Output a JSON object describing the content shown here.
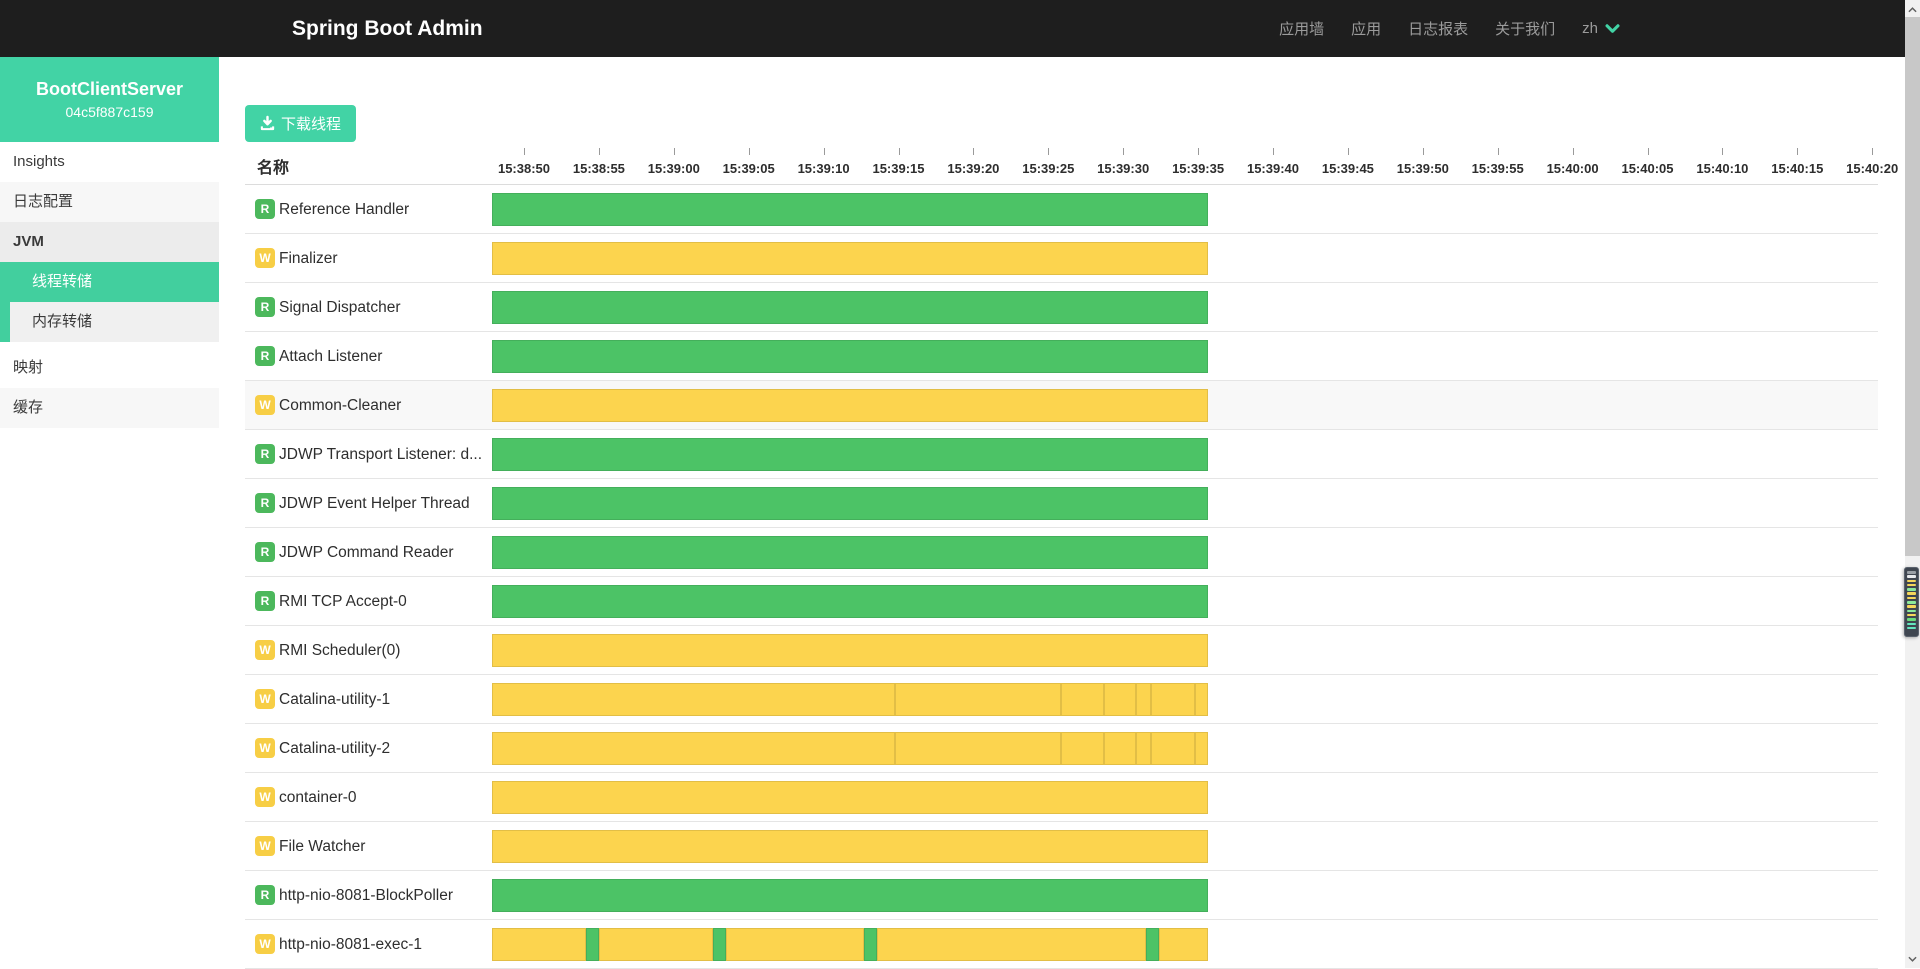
{
  "navbar": {
    "title": "Spring Boot Admin",
    "links": [
      {
        "id": "wallboard",
        "label": "应用墙"
      },
      {
        "id": "applications",
        "label": "应用"
      },
      {
        "id": "journal",
        "label": "日志报表"
      },
      {
        "id": "about",
        "label": "关于我们"
      }
    ],
    "lang": "zh"
  },
  "sidebar": {
    "instance_name": "BootClientServer",
    "instance_id": "04c5f887c159",
    "items": [
      {
        "id": "insights",
        "label": "Insights",
        "variant": "plain"
      },
      {
        "id": "log-config",
        "label": "日志配置",
        "variant": "alt"
      },
      {
        "id": "jvm",
        "label": "JVM",
        "variant": "parent-active"
      }
    ],
    "submenu": [
      {
        "id": "thread-dump",
        "label": "线程转储",
        "variant": "sub selected"
      },
      {
        "id": "memory-dump",
        "label": "内存转储",
        "variant": "sub"
      }
    ],
    "items_after": [
      {
        "id": "mappings",
        "label": "映射",
        "variant": "plain"
      },
      {
        "id": "caches",
        "label": "缓存",
        "variant": "alt"
      }
    ]
  },
  "toolbar": {
    "download_label": "下载线程"
  },
  "table": {
    "name_header": "名称",
    "tick_start_center": 279,
    "tick_step": 74.9,
    "ticks": [
      "15:38:50",
      "15:38:55",
      "15:39:00",
      "15:39:05",
      "15:39:10",
      "15:39:15",
      "15:39:20",
      "15:39:25",
      "15:39:30",
      "15:39:35",
      "15:39:40",
      "15:39:45",
      "15:39:50",
      "15:39:55",
      "15:40:00",
      "15:40:05",
      "15:40:10",
      "15:40:15",
      "15:40:20"
    ]
  },
  "threads": [
    {
      "name": "Reference Handler",
      "state": "R",
      "segments": [
        {
          "c": "g",
          "f": 0,
          "t": 1
        }
      ]
    },
    {
      "name": "Finalizer",
      "state": "W",
      "segments": [
        {
          "c": "y",
          "f": 0,
          "t": 1
        }
      ]
    },
    {
      "name": "Signal Dispatcher",
      "state": "R",
      "segments": [
        {
          "c": "g",
          "f": 0,
          "t": 1
        }
      ]
    },
    {
      "name": "Attach Listener",
      "state": "R",
      "segments": [
        {
          "c": "g",
          "f": 0,
          "t": 1
        }
      ]
    },
    {
      "name": "Common-Cleaner",
      "state": "W",
      "hovered": true,
      "segments": [
        {
          "c": "y",
          "f": 0,
          "t": 1
        }
      ]
    },
    {
      "name": "JDWP Transport Listener: d...",
      "state": "R",
      "segments": [
        {
          "c": "g",
          "f": 0,
          "t": 1
        }
      ]
    },
    {
      "name": "JDWP Event Helper Thread",
      "state": "R",
      "segments": [
        {
          "c": "g",
          "f": 0,
          "t": 1
        }
      ]
    },
    {
      "name": "JDWP Command Reader",
      "state": "R",
      "segments": [
        {
          "c": "g",
          "f": 0,
          "t": 1
        }
      ]
    },
    {
      "name": "RMI TCP Accept-0",
      "state": "R",
      "segments": [
        {
          "c": "g",
          "f": 0,
          "t": 1
        }
      ]
    },
    {
      "name": "RMI Scheduler(0)",
      "state": "W",
      "segments": [
        {
          "c": "y",
          "f": 0,
          "t": 1
        }
      ]
    },
    {
      "name": "Catalina-utility-1",
      "state": "W",
      "segments": [
        {
          "c": "y",
          "f": 0,
          "t": 0.563
        },
        {
          "c": "y",
          "f": 0.563,
          "t": 0.795
        },
        {
          "c": "y",
          "f": 0.795,
          "t": 0.855
        },
        {
          "c": "y",
          "f": 0.855,
          "t": 0.9
        },
        {
          "c": "y",
          "f": 0.9,
          "t": 0.92
        },
        {
          "c": "y",
          "f": 0.92,
          "t": 0.982
        },
        {
          "c": "y",
          "f": 0.982,
          "t": 1
        }
      ]
    },
    {
      "name": "Catalina-utility-2",
      "state": "W",
      "segments": [
        {
          "c": "y",
          "f": 0,
          "t": 0.563
        },
        {
          "c": "y",
          "f": 0.563,
          "t": 0.795
        },
        {
          "c": "y",
          "f": 0.795,
          "t": 0.855
        },
        {
          "c": "y",
          "f": 0.855,
          "t": 0.9
        },
        {
          "c": "y",
          "f": 0.9,
          "t": 0.92
        },
        {
          "c": "y",
          "f": 0.92,
          "t": 0.982
        },
        {
          "c": "y",
          "f": 0.982,
          "t": 1
        }
      ]
    },
    {
      "name": "container-0",
      "state": "W",
      "segments": [
        {
          "c": "y",
          "f": 0,
          "t": 1
        }
      ]
    },
    {
      "name": "File Watcher",
      "state": "W",
      "segments": [
        {
          "c": "y",
          "f": 0,
          "t": 1
        }
      ]
    },
    {
      "name": "http-nio-8081-BlockPoller",
      "state": "R",
      "segments": [
        {
          "c": "g",
          "f": 0,
          "t": 1
        }
      ]
    },
    {
      "name": "http-nio-8081-exec-1",
      "state": "W",
      "segments": [
        {
          "c": "y",
          "f": 0,
          "t": 0.131
        },
        {
          "c": "g",
          "f": 0.131,
          "t": 0.149
        },
        {
          "c": "y",
          "f": 0.149,
          "t": 0.309
        },
        {
          "c": "g",
          "f": 0.309,
          "t": 0.327
        },
        {
          "c": "y",
          "f": 0.327,
          "t": 0.52
        },
        {
          "c": "g",
          "f": 0.52,
          "t": 0.538
        },
        {
          "c": "y",
          "f": 0.538,
          "t": 0.913
        },
        {
          "c": "g",
          "f": 0.913,
          "t": 0.931
        },
        {
          "c": "y",
          "f": 0.931,
          "t": 1
        }
      ]
    }
  ],
  "colors": {
    "brand_green": "#42d3a5",
    "sidebar_selected_green": "#42cf9e",
    "bar_green": "#4cc366",
    "bar_yellow": "#fcd44e",
    "badge_green": "#4cb85c",
    "badge_yellow": "#f7ce45",
    "navbar_bg": "#1e1e1e"
  },
  "minimap_stripes": [
    "#9aa0a6",
    "#e8eaed",
    "#f5d75b",
    "#f5d75b",
    "#8ce99a",
    "#f5d75b",
    "#f5d75b",
    "#8ce99a",
    "#f5d75b",
    "#8ce99a",
    "#f5d75b",
    "#69db7c",
    "#63e6be",
    "#63e6be"
  ]
}
